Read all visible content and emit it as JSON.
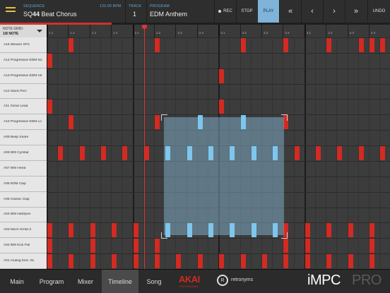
{
  "header": {
    "sequence_label": "SEQUENCE",
    "sequence_prefix": "SQ",
    "sequence_number": "44",
    "sequence_name": " Beat Chorus",
    "bpm": "120.00 BPM",
    "track_label": "TRACK",
    "track_value": "1",
    "program_label": "PROGRAM",
    "program_value": "EDM Anthem"
  },
  "transport": {
    "rec": "REC",
    "stop": "STOP",
    "play": "PLAY",
    "undo": "UNDO",
    "nav": [
      "«",
      "‹",
      "›",
      "»"
    ]
  },
  "grid": {
    "label": "NOTE GRID:",
    "value": "1/8 NOTE"
  },
  "ruler_ticks": [
    "1.1",
    "1.2",
    "1.3",
    "1.4",
    "2.1",
    "2.2",
    "2.3",
    "2.4",
    "3.1",
    "3.2",
    "3.3",
    "3.4",
    "4.1",
    "4.2",
    "4.3",
    "4.4"
  ],
  "tracks": [
    "A15 Weaver SFX",
    "A14 Progressive EDM No",
    "A13 Progressive EDM Hit",
    "A12 Stack Perc",
    "A11 Sonar Lead",
    "A10 Progressive EDM Lo",
    "A09 Beep Snare",
    "A08 909 Cymbal",
    "A07 909 HiHat",
    "A06 EDM Clap",
    "A05 Classic Clap",
    "A04 909 HatOpen",
    "A03 Mech HiHat 3",
    "A02 909 Kick Full",
    "A01 Analog Kick -01"
  ],
  "playhead_position": "2.1 (approx)",
  "bottom_tabs": [
    "Main",
    "Program",
    "Mixer",
    "Timeline",
    "Song"
  ],
  "active_tab": "Timeline",
  "brand": {
    "akai": "AKAI",
    "akai_sub": "PROFESSIONAL",
    "retronyms": "retronyms",
    "app_name": "iMPC",
    "app_suffix": "PRO"
  },
  "colors": {
    "note": "#d32a22",
    "selected_note": "#7fc6ec",
    "play_active": "#7fb3d9",
    "accent_yellow": "#e0c24a"
  }
}
